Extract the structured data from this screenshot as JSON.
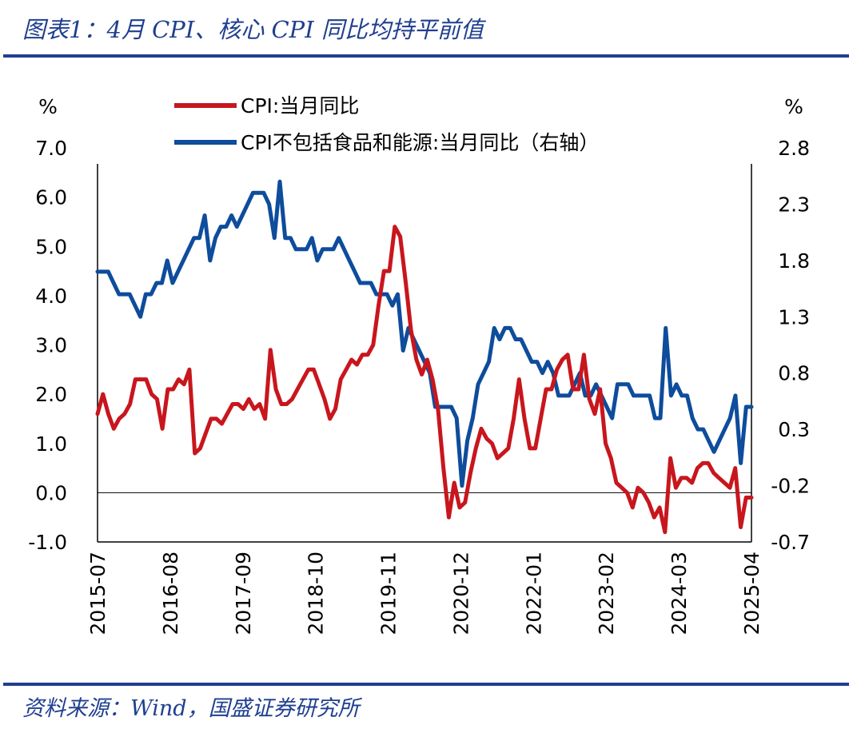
{
  "header": {
    "title": "图表1：4月 CPI、核心 CPI 同比均持平前值"
  },
  "footer": {
    "source": "资料来源：Wind，国盛证券研究所"
  },
  "colors": {
    "brand": "#1f3f8f",
    "cpi": "#c8161d",
    "core": "#0e4c9c",
    "axis": "#000000"
  },
  "chart_data": {
    "type": "line",
    "left_axis": {
      "unit": "%",
      "min": -1.0,
      "max": 7.0,
      "ticks": [
        "7.0",
        "6.0",
        "5.0",
        "4.0",
        "3.0",
        "2.0",
        "1.0",
        "0.0",
        "-1.0"
      ]
    },
    "right_axis": {
      "unit": "%",
      "min": -0.7,
      "max": 2.8,
      "ticks": [
        "2.8",
        "2.3",
        "1.8",
        "1.3",
        "0.8",
        "0.3",
        "-0.2",
        "-0.7"
      ]
    },
    "x_tick_labels": [
      "2015-07",
      "2016-08",
      "2017-09",
      "2018-10",
      "2019-11",
      "2020-12",
      "2022-01",
      "2023-02",
      "2024-03",
      "2025-04"
    ],
    "zero_line": true,
    "legend": {
      "placement": "top",
      "entries": [
        {
          "label": "CPI:当月同比",
          "axis": "left"
        },
        {
          "label": "CPI不包括食品和能源:当月同比（右轴）",
          "axis": "right"
        }
      ]
    },
    "series": [
      {
        "name": "CPI:当月同比",
        "axis": "left",
        "values": [
          1.6,
          2.0,
          1.6,
          1.3,
          1.5,
          1.6,
          1.8,
          2.3,
          2.3,
          2.3,
          2.0,
          1.9,
          1.3,
          2.1,
          2.1,
          2.3,
          2.2,
          2.5,
          0.8,
          0.9,
          1.2,
          1.5,
          1.5,
          1.4,
          1.6,
          1.8,
          1.8,
          1.7,
          1.9,
          1.7,
          1.8,
          1.5,
          2.9,
          2.1,
          1.8,
          1.8,
          1.9,
          2.1,
          2.3,
          2.5,
          2.5,
          2.2,
          1.9,
          1.5,
          1.7,
          2.3,
          2.5,
          2.7,
          2.6,
          2.8,
          2.8,
          3.0,
          3.8,
          4.5,
          4.5,
          5.4,
          5.2,
          4.3,
          3.3,
          2.7,
          2.4,
          2.7,
          2.3,
          1.7,
          0.5,
          -0.5,
          0.2,
          -0.3,
          -0.2,
          0.4,
          0.9,
          1.3,
          1.1,
          1.0,
          0.7,
          0.8,
          0.9,
          1.5,
          2.3,
          1.5,
          0.9,
          0.9,
          1.5,
          2.1,
          2.1,
          2.5,
          2.7,
          2.8,
          2.1,
          2.1,
          2.8,
          1.9,
          1.6,
          2.1,
          1.0,
          0.7,
          0.2,
          0.1,
          0.0,
          -0.3,
          0.1,
          0.0,
          -0.2,
          -0.5,
          -0.3,
          -0.8,
          0.7,
          0.1,
          0.3,
          0.3,
          0.2,
          0.5,
          0.6,
          0.6,
          0.4,
          0.3,
          0.2,
          0.1,
          0.5,
          -0.7,
          -0.1,
          -0.1
        ]
      },
      {
        "name": "CPI不包括食品和能源:当月同比（右轴）",
        "axis": "right",
        "values": [
          1.7,
          1.7,
          1.7,
          1.6,
          1.5,
          1.5,
          1.5,
          1.4,
          1.3,
          1.5,
          1.5,
          1.6,
          1.6,
          1.8,
          1.6,
          1.7,
          1.8,
          1.9,
          2.0,
          2.0,
          2.2,
          1.8,
          2.0,
          2.1,
          2.1,
          2.2,
          2.1,
          2.2,
          2.3,
          2.4,
          2.4,
          2.4,
          2.3,
          2.0,
          2.5,
          2.0,
          2.0,
          1.9,
          1.9,
          1.9,
          2.0,
          1.8,
          1.9,
          1.9,
          1.9,
          2.0,
          1.9,
          1.8,
          1.7,
          1.6,
          1.6,
          1.6,
          1.5,
          1.5,
          1.5,
          1.4,
          1.5,
          1.0,
          1.2,
          1.1,
          1.0,
          0.9,
          0.8,
          0.5,
          0.5,
          0.5,
          0.5,
          0.4,
          -0.2,
          0.2,
          0.4,
          0.7,
          0.8,
          0.9,
          1.2,
          1.1,
          1.2,
          1.2,
          1.1,
          1.1,
          1.0,
          0.9,
          0.9,
          0.8,
          0.9,
          0.8,
          0.6,
          0.6,
          0.6,
          0.7,
          0.8,
          0.6,
          0.6,
          0.7,
          0.6,
          0.5,
          0.4,
          0.7,
          0.7,
          0.7,
          0.6,
          0.6,
          0.6,
          0.6,
          0.4,
          0.4,
          1.2,
          0.6,
          0.7,
          0.6,
          0.6,
          0.4,
          0.3,
          0.3,
          0.2,
          0.1,
          0.2,
          0.3,
          0.4,
          0.6,
          0.0,
          0.5,
          0.5
        ]
      }
    ]
  }
}
